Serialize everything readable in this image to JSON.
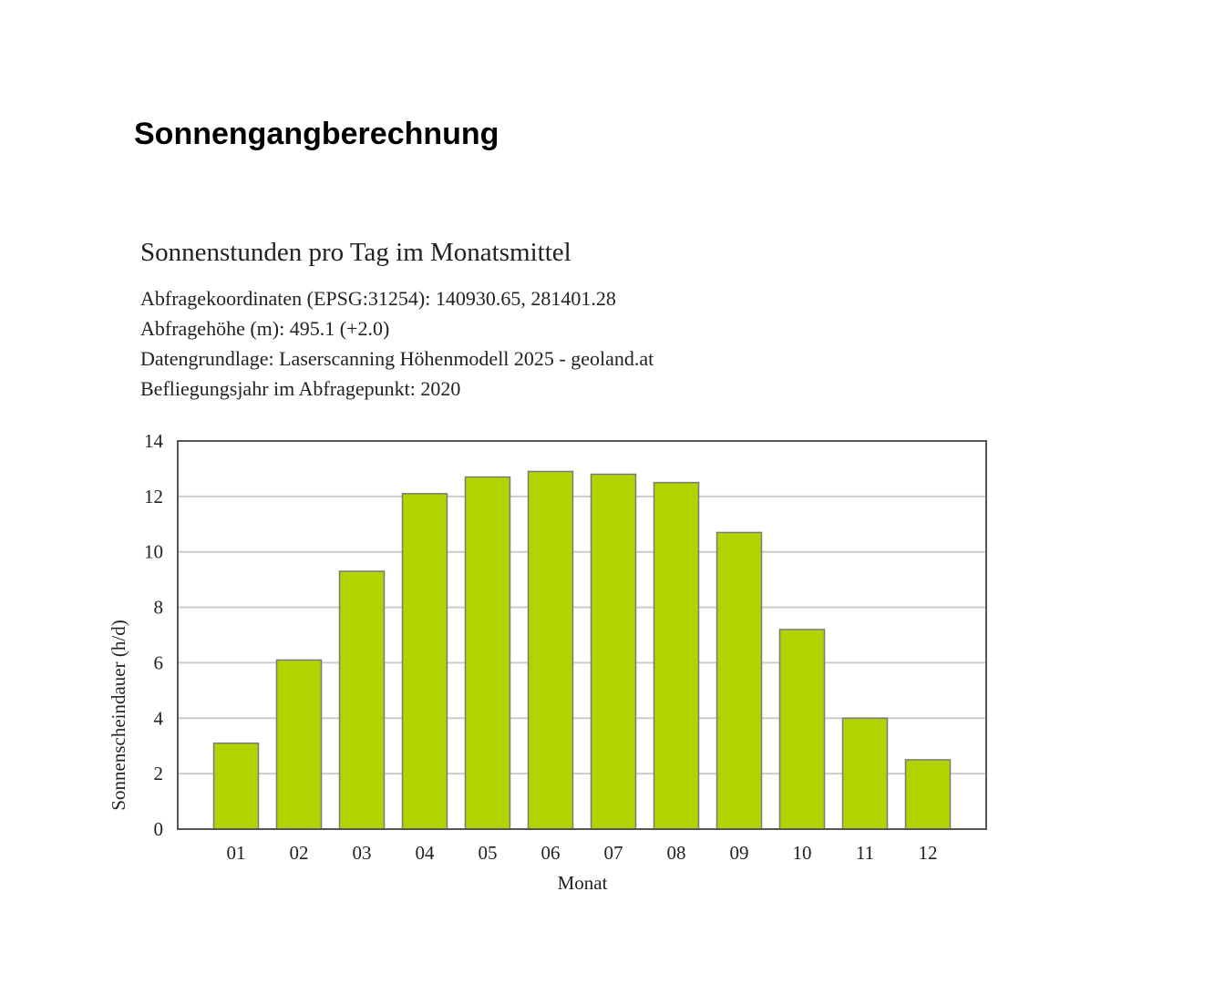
{
  "page": {
    "title": "Sonnengangberechnung"
  },
  "chart_data": {
    "type": "bar",
    "title": "Sonnenstunden pro Tag im Monatsmittel",
    "info_lines": [
      "Abfragekoordinaten (EPSG:31254): 140930.65, 281401.28",
      "Abfragehöhe (m): 495.1 (+2.0)",
      "Datengrundlage: Laserscanning Höhenmodell 2025 - geoland.at",
      "Befliegungsjahr im Abfragepunkt: 2020"
    ],
    "categories": [
      "01",
      "02",
      "03",
      "04",
      "05",
      "06",
      "07",
      "08",
      "09",
      "10",
      "11",
      "12"
    ],
    "values": [
      3.1,
      6.1,
      9.3,
      12.1,
      12.7,
      12.9,
      12.8,
      12.5,
      10.7,
      7.2,
      4.0,
      2.5
    ],
    "xlabel": "Monat",
    "ylabel": "Sonnenscheindauer (h/d)",
    "ylim": [
      0,
      14
    ],
    "yticks": [
      0,
      2,
      4,
      6,
      8,
      10,
      12,
      14
    ],
    "grid": true,
    "colors": {
      "bar_fill": "#b2d300",
      "bar_stroke": "#7a7a7a",
      "grid": "#cccccc",
      "axis": "#555555"
    }
  }
}
